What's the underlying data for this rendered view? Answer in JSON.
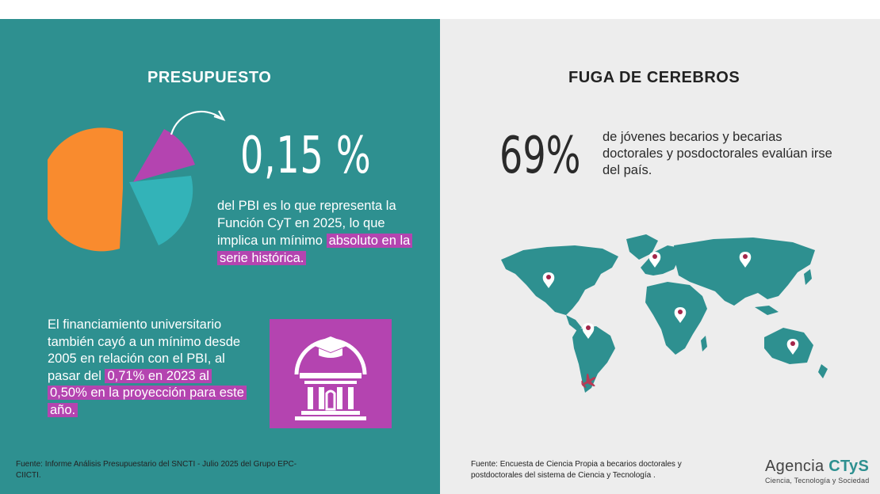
{
  "colors": {
    "teal_panel": "#2e9090",
    "gray_panel": "#ededed",
    "pie_orange": "#f98b2e",
    "pie_magenta": "#b444b0",
    "pie_teal": "#33b3b8",
    "highlight": "#b444b0",
    "map_teal": "#2e9090",
    "pin_red": "#a3264a",
    "plane": "#b83a55"
  },
  "left": {
    "title": "PRESUPUESTO",
    "big_value": "0,15 %",
    "desc_plain": "del PBI es lo que representa la  Función CyT en 2025, lo que implica un mínimo",
    "desc_highlight": "absoluto en la serie histórica.",
    "desc2_plain": "El financiamiento universitario también cayó a un mínimo desde 2005 en relación con el PBI, al pasar del",
    "desc2_highlight": "0,71% en 2023 al 0,50% en la proyección para este año.",
    "source": "Fuente: Informe Análisis Presupuestario del SNCTI - Julio 2025 del Grupo EPC-CIICTI.",
    "icons": {
      "pie": "pie-chart-icon",
      "arrow": "curved-arrow-icon",
      "university": "university-building-icon"
    }
  },
  "right": {
    "title": "FUGA DE CEREBROS",
    "big_stat": "69%",
    "stat_desc": "de jóvenes becarios y becarias doctorales y posdoctorales evalúan irse del país.",
    "source": "Fuente: Encuesta de Ciencia Propia a becarios doctorales y postdoctorales del sistema de Ciencia y Tecnología .",
    "icons": {
      "map": "world-map-icon",
      "pin": "location-pin-icon",
      "plane": "airplane-icon"
    }
  },
  "logo": {
    "main": "Agencia",
    "accent": "CTyS",
    "sub": "Ciencia, Tecnología y Sociedad"
  }
}
